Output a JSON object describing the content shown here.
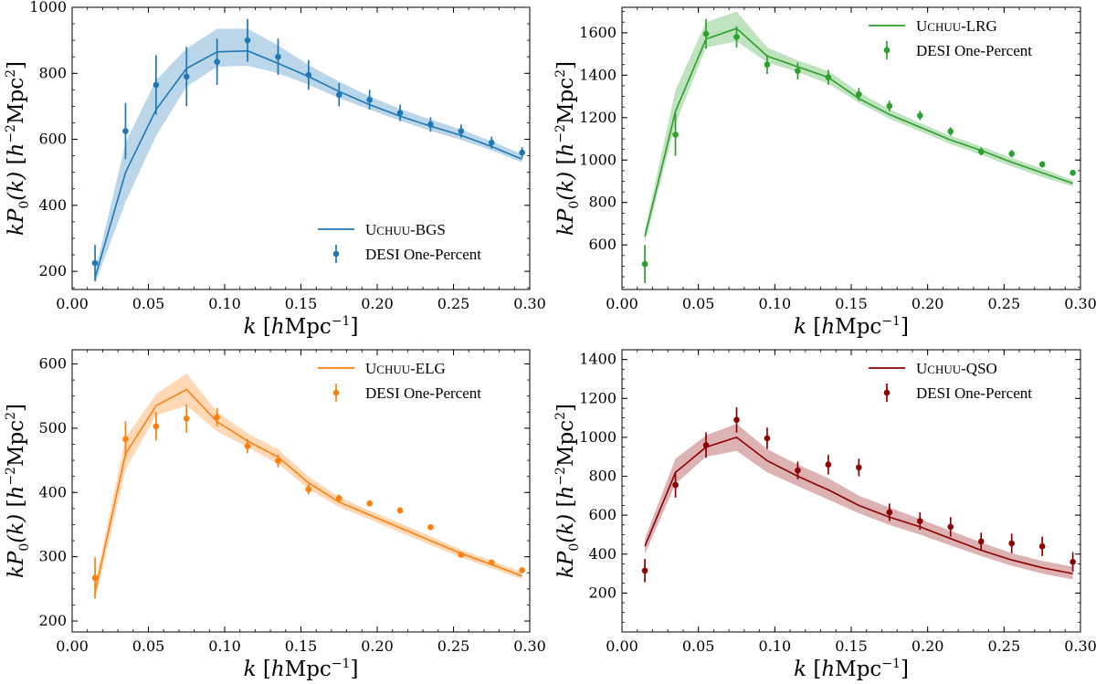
{
  "chart_data": [
    {
      "type": "line",
      "panel": "top-left",
      "color": "#1f77b4",
      "x": [
        0.015,
        0.035,
        0.055,
        0.075,
        0.095,
        0.115,
        0.135,
        0.155,
        0.175,
        0.195,
        0.215,
        0.235,
        0.255,
        0.275,
        0.295
      ],
      "model": {
        "name": "Uchuu-BGS",
        "name_parts": [
          "U",
          "CHUU",
          "-BGS"
        ],
        "y": [
          180,
          500,
          690,
          815,
          865,
          868,
          830,
          790,
          745,
          705,
          670,
          640,
          612,
          578,
          540
        ],
        "lower": [
          163,
          410,
          610,
          760,
          820,
          823,
          800,
          765,
          725,
          690,
          656,
          626,
          598,
          566,
          530
        ],
        "upper": [
          198,
          590,
          780,
          875,
          935,
          935,
          885,
          825,
          775,
          730,
          692,
          660,
          630,
          594,
          555
        ]
      },
      "data": {
        "name": "DESI One-Percent",
        "y": [
          225,
          625,
          765,
          790,
          835,
          900,
          850,
          795,
          735,
          720,
          680,
          645,
          625,
          590,
          560
        ],
        "err": [
          55,
          85,
          90,
          90,
          70,
          65,
          55,
          45,
          35,
          30,
          25,
          22,
          20,
          18,
          16
        ]
      },
      "xlim": [
        0.0,
        0.3
      ],
      "ylim": [
        145,
        1000
      ],
      "xticks": [
        0.0,
        0.05,
        0.1,
        0.15,
        0.2,
        0.25,
        0.3
      ],
      "xtick_labels": [
        "0.00",
        "0.05",
        "0.10",
        "0.15",
        "0.20",
        "0.25",
        "0.30"
      ],
      "yticks": [
        200,
        400,
        600,
        800,
        1000
      ],
      "ytick_labels": [
        "200",
        "400",
        "600",
        "800",
        "1000"
      ],
      "xlabel_parts": [
        "k",
        "[",
        "h",
        "Mpc",
        "−1",
        "]"
      ],
      "ylabel_parts": [
        "kP",
        "0",
        "(k)",
        "[",
        "h",
        "−2",
        "Mpc",
        "2",
        "]"
      ],
      "legend_position": "lower-right"
    },
    {
      "type": "line",
      "panel": "top-right",
      "color": "#2ca02c",
      "x": [
        0.015,
        0.035,
        0.055,
        0.075,
        0.095,
        0.115,
        0.135,
        0.155,
        0.175,
        0.195,
        0.215,
        0.235,
        0.255,
        0.275,
        0.295
      ],
      "model": {
        "name": "Uchuu-LRG",
        "name_parts": [
          "U",
          "CHUU",
          "-LRG"
        ],
        "y": [
          640,
          1230,
          1570,
          1620,
          1490,
          1440,
          1390,
          1290,
          1215,
          1155,
          1095,
          1045,
          990,
          940,
          890
        ],
        "lower": [
          610,
          1170,
          1530,
          1560,
          1460,
          1415,
          1360,
          1270,
          1195,
          1135,
          1075,
          1025,
          970,
          920,
          875
        ],
        "upper": [
          670,
          1330,
          1650,
          1700,
          1530,
          1470,
          1420,
          1320,
          1240,
          1175,
          1115,
          1065,
          1010,
          960,
          905
        ]
      },
      "data": {
        "name": "DESI One-Percent",
        "y": [
          510,
          1120,
          1595,
          1580,
          1450,
          1420,
          1390,
          1310,
          1255,
          1210,
          1135,
          1040,
          1030,
          980,
          940
        ],
        "err": [
          90,
          100,
          70,
          50,
          45,
          40,
          35,
          30,
          25,
          22,
          20,
          18,
          17,
          15,
          14
        ]
      },
      "xlim": [
        0.0,
        0.3
      ],
      "ylim": [
        390,
        1720
      ],
      "xticks": [
        0.0,
        0.05,
        0.1,
        0.15,
        0.2,
        0.25,
        0.3
      ],
      "xtick_labels": [
        "0.00",
        "0.05",
        "0.10",
        "0.15",
        "0.20",
        "0.25",
        "0.30"
      ],
      "yticks": [
        600,
        800,
        1000,
        1200,
        1400,
        1600
      ],
      "ytick_labels": [
        "600",
        "800",
        "1000",
        "1200",
        "1400",
        "1600"
      ],
      "xlabel_parts": [
        "k",
        "[",
        "h",
        "Mpc",
        "−1",
        "]"
      ],
      "ylabel_parts": [
        "kP",
        "0",
        "(k)",
        "[",
        "h",
        "−2",
        "Mpc",
        "2",
        "]"
      ],
      "legend_position": "upper-right"
    },
    {
      "type": "line",
      "panel": "bottom-left",
      "color": "#ff7f0e",
      "x": [
        0.015,
        0.035,
        0.055,
        0.075,
        0.095,
        0.115,
        0.135,
        0.155,
        0.175,
        0.195,
        0.215,
        0.235,
        0.255,
        0.275,
        0.295
      ],
      "model": {
        "name": "Uchuu-ELG",
        "name_parts": [
          "U",
          "CHUU",
          "-ELG"
        ],
        "y": [
          245,
          460,
          535,
          560,
          510,
          480,
          455,
          415,
          385,
          365,
          345,
          325,
          305,
          288,
          270
        ],
        "lower": [
          232,
          435,
          520,
          535,
          495,
          470,
          445,
          405,
          377,
          358,
          338,
          318,
          299,
          282,
          265
        ],
        "upper": [
          258,
          485,
          553,
          585,
          525,
          492,
          467,
          425,
          393,
          372,
          352,
          332,
          311,
          294,
          276
        ]
      },
      "data": {
        "name": "DESI One-Percent",
        "y": [
          267,
          483,
          503,
          515,
          517,
          472,
          449,
          405,
          391,
          383,
          372,
          346,
          303,
          291,
          279
        ],
        "err": [
          32,
          28,
          22,
          22,
          14,
          11,
          10,
          8,
          6,
          5,
          5,
          4,
          4,
          4,
          3
        ]
      },
      "xlim": [
        0.0,
        0.3
      ],
      "ylim": [
        183,
        622
      ],
      "xticks": [
        0.0,
        0.05,
        0.1,
        0.15,
        0.2,
        0.25,
        0.3
      ],
      "xtick_labels": [
        "0.00",
        "0.05",
        "0.10",
        "0.15",
        "0.20",
        "0.25",
        "0.30"
      ],
      "yticks": [
        200,
        300,
        400,
        500,
        600
      ],
      "ytick_labels": [
        "200",
        "300",
        "400",
        "500",
        "600"
      ],
      "xlabel_parts": [
        "k",
        "[",
        "h",
        "Mpc",
        "−1",
        "]"
      ],
      "ylabel_parts": [
        "kP",
        "0",
        "(k)",
        "[",
        "h",
        "−2",
        "Mpc",
        "2",
        "]"
      ],
      "legend_position": "upper-right"
    },
    {
      "type": "line",
      "panel": "bottom-right",
      "color": "#8b0000",
      "x": [
        0.015,
        0.035,
        0.055,
        0.075,
        0.095,
        0.115,
        0.135,
        0.155,
        0.175,
        0.195,
        0.215,
        0.235,
        0.255,
        0.275,
        0.295
      ],
      "model": {
        "name": "Uchuu-QSO",
        "name_parts": [
          "U",
          "CHUU",
          "-QSO"
        ],
        "y": [
          440,
          820,
          950,
          1000,
          880,
          800,
          730,
          650,
          590,
          540,
          480,
          420,
          370,
          330,
          300
        ],
        "lower": [
          400,
          760,
          900,
          930,
          820,
          750,
          680,
          610,
          550,
          500,
          445,
          390,
          340,
          300,
          270
        ],
        "upper": [
          480,
          890,
          1010,
          1070,
          940,
          860,
          790,
          700,
          640,
          580,
          520,
          460,
          405,
          365,
          335
        ]
      },
      "data": {
        "name": "DESI One-Percent",
        "y": [
          315,
          755,
          960,
          1090,
          995,
          830,
          860,
          845,
          615,
          570,
          540,
          465,
          455,
          440,
          360
        ],
        "err": [
          60,
          65,
          65,
          65,
          55,
          45,
          50,
          45,
          45,
          45,
          50,
          45,
          50,
          50,
          50
        ]
      },
      "xlim": [
        0.0,
        0.3
      ],
      "ylim": [
        0,
        1450
      ],
      "xticks": [
        0.0,
        0.05,
        0.1,
        0.15,
        0.2,
        0.25,
        0.3
      ],
      "xtick_labels": [
        "0.00",
        "0.05",
        "0.10",
        "0.15",
        "0.20",
        "0.25",
        "0.30"
      ],
      "yticks": [
        200,
        400,
        600,
        800,
        1000,
        1200,
        1400
      ],
      "ytick_labels": [
        "200",
        "400",
        "600",
        "800",
        "1000",
        "1200",
        "1400"
      ],
      "xlabel_parts": [
        "k",
        "[",
        "h",
        "Mpc",
        "−1",
        "]"
      ],
      "ylabel_parts": [
        "kP",
        "0",
        "(k)",
        "[",
        "h",
        "−2",
        "Mpc",
        "2",
        "]"
      ],
      "legend_position": "upper-right"
    }
  ]
}
